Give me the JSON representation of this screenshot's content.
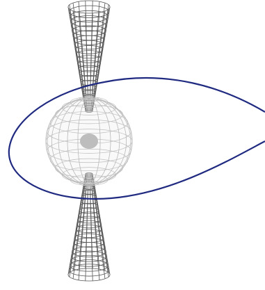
{
  "colors": {
    "background": "#ffffff",
    "jet_mesh": "#555555",
    "sphere_mesh": "#bdbdbd",
    "orbit": "#1f2a80"
  },
  "parts": {
    "jet_north": "cone",
    "jet_south": "cone",
    "central_body": "sphere",
    "orbit": "closed-curve"
  }
}
